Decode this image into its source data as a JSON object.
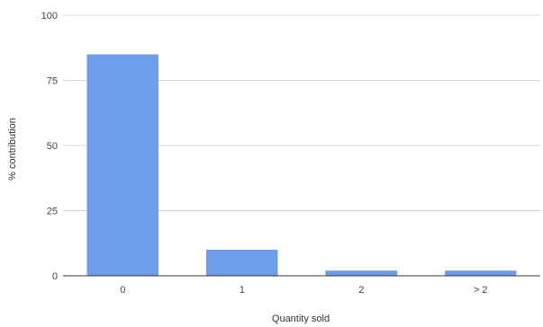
{
  "chart_data": {
    "type": "bar",
    "categories": [
      "0",
      "1",
      "2",
      "> 2"
    ],
    "values": [
      85,
      10,
      2,
      2
    ],
    "title": "",
    "xlabel": "Quantity sold",
    "ylabel": "% contribution",
    "ylim": [
      0,
      100
    ],
    "yticks": [
      "0",
      "25",
      "50",
      "75",
      "100"
    ],
    "grid": true,
    "legend": "none",
    "bar_color": "#6d9eeb",
    "grid_color": "#d9d9d9",
    "axis_color": "#333333"
  }
}
